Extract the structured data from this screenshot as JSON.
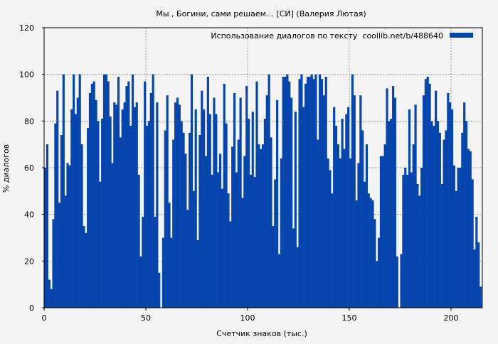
{
  "chart_data": {
    "type": "bar",
    "title": "Мы , Богини, сами решаем… [СИ] (Валерия Лютая)",
    "xlabel": "Счетчик знаков (тыс.)",
    "ylabel": "% диалогов",
    "xlim": [
      0,
      215.4
    ],
    "ylim": [
      0,
      120
    ],
    "xticks": [
      0,
      50,
      100,
      150,
      200
    ],
    "yticks": [
      0,
      20,
      40,
      60,
      80,
      100,
      120
    ],
    "grid": true,
    "legend_position": "top-right",
    "series": [
      {
        "name": "Использование диалогов по тексту  coollib.net/b/488640",
        "color": "#0645ad",
        "x_step": 1,
        "values": [
          60,
          70,
          12,
          8,
          38,
          79,
          93,
          45,
          74,
          100,
          48,
          62,
          61,
          85,
          100,
          83,
          90,
          100,
          70,
          35,
          32,
          77,
          92,
          96,
          97,
          89,
          80,
          54,
          81,
          100,
          100,
          97,
          82,
          62,
          88,
          87,
          99,
          73,
          85,
          88,
          95,
          97,
          78,
          100,
          86,
          88,
          57,
          22,
          39,
          97,
          78,
          80,
          92,
          100,
          39,
          88,
          15,
          0,
          30,
          76,
          91,
          45,
          30,
          72,
          88,
          90,
          87,
          80,
          75,
          66,
          42,
          75,
          100,
          50,
          85,
          29,
          74,
          93,
          85,
          65,
          99,
          83,
          57,
          90,
          83,
          58,
          66,
          51,
          96,
          79,
          49,
          37,
          69,
          92,
          58,
          72,
          90,
          47,
          65,
          95,
          81,
          57,
          84,
          56,
          97,
          70,
          68,
          70,
          81,
          91,
          100,
          73,
          35,
          55,
          89,
          23,
          64,
          99,
          99,
          100,
          97,
          90,
          34,
          84,
          26,
          98,
          100,
          86,
          96,
          99,
          99,
          100,
          98,
          100,
          72,
          100,
          98,
          91,
          99,
          64,
          59,
          49,
          86,
          78,
          70,
          64,
          81,
          68,
          83,
          86,
          64,
          100,
          91,
          46,
          62,
          91,
          76,
          54,
          70,
          49,
          47,
          46,
          38,
          20,
          30,
          65,
          65,
          70,
          94,
          80,
          81,
          95,
          90,
          22,
          0,
          23,
          57,
          60,
          57,
          85,
          58,
          70,
          87,
          53,
          48,
          60,
          91,
          98,
          99,
          96,
          80,
          78,
          93,
          80,
          75,
          53,
          72,
          76,
          92,
          88,
          85,
          61,
          50,
          60,
          60,
          75,
          88,
          80,
          68,
          67,
          55,
          25,
          39,
          28,
          9
        ]
      }
    ]
  }
}
